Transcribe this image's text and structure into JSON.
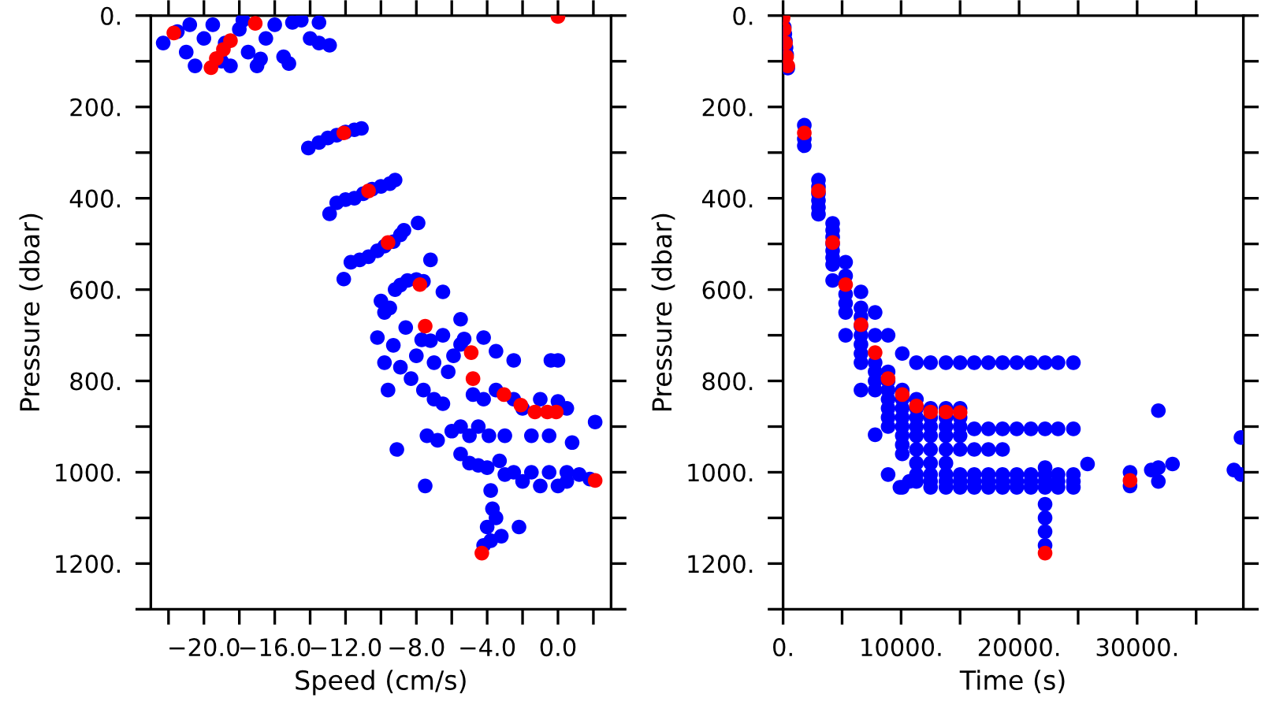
{
  "chart_data": [
    {
      "type": "scatter",
      "xlabel": "Speed (cm/s)",
      "ylabel": "Pressure (dbar)",
      "xlim": [
        -23,
        3
      ],
      "ylim": [
        1300,
        0
      ],
      "marker": "circle",
      "grid": false,
      "legend": false,
      "xticks": [
        {
          "value": -22,
          "label": null
        },
        {
          "value": -20,
          "label": "−20.0"
        },
        {
          "value": -18,
          "label": null
        },
        {
          "value": -16,
          "label": "−16.0"
        },
        {
          "value": -14,
          "label": null
        },
        {
          "value": -12,
          "label": "−12.0"
        },
        {
          "value": -10,
          "label": null
        },
        {
          "value": -8,
          "label": "−8.0"
        },
        {
          "value": -6,
          "label": null
        },
        {
          "value": -4,
          "label": "−4.0"
        },
        {
          "value": -2,
          "label": null
        },
        {
          "value": 0,
          "label": "0.0"
        },
        {
          "value": 2,
          "label": null
        }
      ],
      "yticks": [
        {
          "value": 0,
          "label": "0."
        },
        {
          "value": 100,
          "label": null
        },
        {
          "value": 200,
          "label": "200."
        },
        {
          "value": 300,
          "label": null
        },
        {
          "value": 400,
          "label": "400."
        },
        {
          "value": 500,
          "label": null
        },
        {
          "value": 600,
          "label": "600."
        },
        {
          "value": 700,
          "label": null
        },
        {
          "value": 800,
          "label": "800."
        },
        {
          "value": 900,
          "label": null
        },
        {
          "value": 1000,
          "label": "1000."
        },
        {
          "value": 1100,
          "label": null
        },
        {
          "value": 1200,
          "label": "1200."
        },
        {
          "value": 1300,
          "label": null
        }
      ],
      "series": [
        {
          "color": "#0000ff",
          "x": [
            -22.3,
            -21.5,
            -21,
            -20.5,
            -20,
            -19.5,
            -19,
            -18.5,
            -18,
            -17.5,
            -17,
            -16.5,
            -16,
            -15.5,
            -15,
            -14.5,
            -14,
            -13.5,
            -13.5,
            -12.9,
            -15.2,
            -20.8,
            -16.8,
            -18.8,
            -17.8,
            -14.1,
            -13.5,
            -13,
            -12.5,
            -12,
            -11.5,
            -11.1,
            -12.9,
            -12.5,
            -12,
            -11.5,
            -11,
            -10.5,
            -10,
            -9.5,
            -9.2,
            -12.1,
            -11.7,
            -11.2,
            -10.7,
            -10.2,
            -9.8,
            -9.3,
            -8.9,
            -8.7,
            -7.9,
            -7.2,
            -10,
            -9.8,
            -9.5,
            -9.2,
            -8.9,
            -8.5,
            -8,
            -7.6,
            -6.5,
            -5.5,
            -7,
            -10.2,
            -9.8,
            -9.3,
            -8.9,
            -8.3,
            -8.6,
            -8,
            -7.7,
            -7.2,
            -6.5,
            -6.2,
            -5.9,
            -5.5,
            -5.3,
            -4.2,
            -3.5,
            -2.5,
            -0.4,
            0,
            -9.6,
            -7.6,
            -7,
            -6.5,
            -4.8,
            -4.2,
            -3.5,
            -2.5,
            -2,
            -1,
            0,
            0.5,
            -9.1,
            -7.4,
            -6.8,
            -6,
            -5.5,
            -5,
            -4.5,
            -3.9,
            -3,
            -1.5,
            -0.5,
            0.8,
            2.1,
            -5.5,
            -5,
            -4.5,
            -4,
            -3.3,
            -2.5,
            -1.5,
            -0.5,
            0.5,
            1.2,
            1.8,
            -7.5,
            -3,
            -2,
            -1,
            0,
            0.5,
            -3.8,
            -3.7,
            -3.5,
            -4,
            -3.2,
            -2.2,
            -4.2,
            -3.8
          ],
          "values": [
            60,
            35,
            80,
            110,
            50,
            20,
            100,
            110,
            30,
            80,
            110,
            50,
            20,
            90,
            15,
            10,
            50,
            60,
            15,
            65,
            105,
            20,
            95,
            60,
            10,
            290,
            278,
            268,
            262,
            255,
            250,
            247,
            434,
            410,
            403,
            400,
            390,
            380,
            374,
            368,
            360,
            577,
            540,
            535,
            528,
            515,
            505,
            495,
            480,
            470,
            454,
            535,
            625,
            650,
            640,
            600,
            590,
            580,
            578,
            582,
            605,
            665,
            760,
            705,
            760,
            722,
            770,
            795,
            683,
            745,
            710,
            712,
            700,
            780,
            745,
            720,
            708,
            705,
            735,
            755,
            755,
            755,
            820,
            820,
            840,
            850,
            830,
            840,
            820,
            840,
            860,
            840,
            845,
            860,
            950,
            920,
            930,
            910,
            900,
            920,
            900,
            920,
            920,
            920,
            920,
            935,
            890,
            960,
            980,
            985,
            990,
            975,
            1000,
            1000,
            1000,
            1000,
            1005,
            1015,
            1030,
            1005,
            1020,
            1030,
            1030,
            1020,
            1040,
            1080,
            1100,
            1120,
            1140,
            1120,
            1160,
            1150
          ]
        },
        {
          "color": "#ff0000",
          "x": [
            -21.7,
            -17.1,
            -18.5,
            -18.9,
            -19.3,
            -19.6,
            0,
            -12.1,
            -10.7,
            -9.6,
            -7.8,
            -7.5,
            -4.9,
            -4.8,
            -3.05,
            -2.1,
            -1.3,
            -0.6,
            -0.1,
            2.1,
            -4.3
          ],
          "values": [
            38,
            17,
            55,
            74,
            94,
            114,
            2,
            257,
            384,
            497,
            589,
            680,
            738,
            795,
            830,
            853,
            868,
            868,
            868,
            1018,
            1177
          ]
        }
      ]
    },
    {
      "type": "scatter",
      "xlabel": "Time (s)",
      "ylabel": "Pressure (dbar)",
      "xlim": [
        0,
        39000
      ],
      "ylim": [
        1300,
        0
      ],
      "marker": "circle",
      "grid": false,
      "legend": false,
      "xticks": [
        {
          "value": 0,
          "label": "0."
        },
        {
          "value": 5000,
          "label": null
        },
        {
          "value": 10000,
          "label": "10000."
        },
        {
          "value": 15000,
          "label": null
        },
        {
          "value": 20000,
          "label": "20000."
        },
        {
          "value": 25000,
          "label": null
        },
        {
          "value": 30000,
          "label": "30000."
        },
        {
          "value": 35000,
          "label": null
        }
      ],
      "yticks": [
        {
          "value": 0,
          "label": "0."
        },
        {
          "value": 100,
          "label": null
        },
        {
          "value": 200,
          "label": "200."
        },
        {
          "value": 300,
          "label": null
        },
        {
          "value": 400,
          "label": "400."
        },
        {
          "value": 500,
          "label": null
        },
        {
          "value": 600,
          "label": "600."
        },
        {
          "value": 700,
          "label": null
        },
        {
          "value": 800,
          "label": "800."
        },
        {
          "value": 900,
          "label": null
        },
        {
          "value": 1000,
          "label": "1000."
        },
        {
          "value": 1100,
          "label": null
        },
        {
          "value": 1200,
          "label": "1200."
        },
        {
          "value": 1300,
          "label": null
        }
      ],
      "series": [
        {
          "color": "#0000ff",
          "x": [
            100,
            150,
            200,
            250,
            300,
            400,
            1800,
            1800,
            1800,
            3000,
            3000,
            3000,
            3000,
            3000,
            3000,
            4200,
            4200,
            4200,
            4200,
            4200,
            4200,
            4200,
            4200,
            5300,
            5300,
            5300,
            5300,
            5300,
            5300,
            6600,
            6600,
            6600,
            6600,
            6600,
            6600,
            6600,
            6600,
            6600,
            7800,
            7800,
            7800,
            7800,
            7800,
            7800,
            7800,
            8900,
            8900,
            8900,
            8900,
            8900,
            8900,
            8900,
            8900,
            8900,
            10100,
            10100,
            10100,
            10100,
            10100,
            10100,
            10100,
            10100,
            10100,
            10100,
            9900,
            10700,
            11300,
            11300,
            11300,
            11300,
            11300,
            11300,
            11300,
            11300,
            11300,
            11300,
            12500,
            12500,
            12500,
            12500,
            12500,
            12500,
            12500,
            12500,
            12500,
            12500,
            13800,
            13800,
            13800,
            13800,
            13800,
            13800,
            13800,
            13800,
            13800,
            13800,
            15000,
            15000,
            15000,
            15000,
            15000,
            15000,
            15000,
            15000,
            15000,
            16200,
            16200,
            16200,
            16200,
            16200,
            16200,
            17400,
            17400,
            17400,
            17400,
            17400,
            17400,
            18600,
            18600,
            18600,
            18600,
            18600,
            18600,
            19800,
            19800,
            19800,
            19800,
            19800,
            21000,
            21000,
            21000,
            21000,
            21000,
            22200,
            22200,
            22200,
            22200,
            22200,
            22200,
            22200,
            22200,
            22200,
            22200,
            23300,
            23300,
            23300,
            23300,
            23300,
            24600,
            24600,
            24600,
            24600,
            24600,
            25800,
            29400,
            29400,
            31200,
            31800,
            31800,
            31800,
            33000,
            38200,
            38800,
            38800
          ],
          "values": [
            25,
            40,
            55,
            70,
            85,
            115,
            240,
            270,
            285,
            360,
            375,
            390,
            405,
            420,
            435,
            455,
            470,
            485,
            500,
            515,
            530,
            545,
            580,
            540,
            570,
            610,
            630,
            650,
            700,
            605,
            640,
            660,
            680,
            700,
            720,
            740,
            760,
            820,
            650,
            700,
            760,
            780,
            800,
            820,
            918,
            700,
            780,
            800,
            820,
            840,
            860,
            880,
            900,
            1005,
            740,
            820,
            840,
            860,
            880,
            900,
            920,
            940,
            960,
            1033,
            1033,
            1020,
            760,
            840,
            860,
            880,
            900,
            920,
            950,
            980,
            1005,
            1020,
            760,
            860,
            880,
            900,
            920,
            950,
            980,
            1005,
            1020,
            1033,
            760,
            860,
            880,
            900,
            920,
            950,
            980,
            1005,
            1020,
            1033,
            760,
            860,
            880,
            900,
            920,
            950,
            1005,
            1020,
            1033,
            760,
            905,
            950,
            1005,
            1020,
            1033,
            760,
            905,
            950,
            1005,
            1020,
            1033,
            760,
            905,
            950,
            1005,
            1020,
            1033,
            760,
            905,
            1005,
            1020,
            1033,
            760,
            905,
            1005,
            1020,
            1033,
            760,
            905,
            990,
            1005,
            1020,
            1033,
            1070,
            1100,
            1130,
            1160,
            760,
            905,
            1005,
            1020,
            1033,
            760,
            905,
            1005,
            1020,
            1033,
            982,
            1000,
            1030,
            995,
            990,
            1020,
            865,
            982,
            995,
            924,
            1005
          ]
        },
        {
          "color": "#ff0000",
          "x": [
            0,
            100,
            200,
            300,
            400,
            1800,
            3000,
            4200,
            5300,
            6600,
            7800,
            8900,
            10100,
            11300,
            12500,
            13800,
            15000,
            22200,
            29400
          ],
          "values": [
            5,
            30,
            60,
            90,
            110,
            257,
            384,
            497,
            589,
            677,
            738,
            795,
            830,
            855,
            868,
            868,
            869,
            1177,
            1018
          ]
        }
      ]
    }
  ]
}
